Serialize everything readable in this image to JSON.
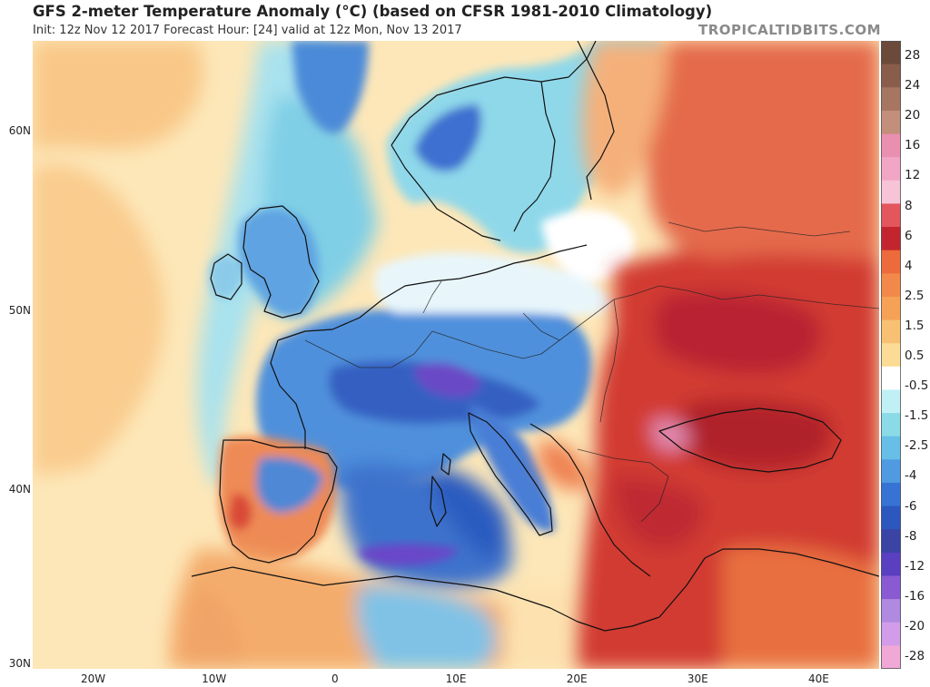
{
  "header": {
    "title": "GFS 2-meter Temperature Anomaly (°C) (based on CFSR 1981-2010 Climatology)",
    "subtitle": "Init: 12z Nov 12 2017   Forecast Hour: [24]   valid at 12z Mon, Nov 13 2017",
    "brand": "TROPICALTIDBITS.COM"
  },
  "map": {
    "lat_ticks": [
      {
        "label": "60N",
        "lat": 60
      },
      {
        "label": "50N",
        "lat": 50
      },
      {
        "label": "40N",
        "lat": 40
      },
      {
        "label": "30N",
        "lat": 30
      }
    ],
    "lon_ticks": [
      {
        "label": "20W",
        "lon": -20
      },
      {
        "label": "10W",
        "lon": -10
      },
      {
        "label": "0",
        "lon": 0
      },
      {
        "label": "10E",
        "lon": 10
      },
      {
        "label": "20E",
        "lon": 20
      },
      {
        "label": "30E",
        "lon": 30
      },
      {
        "label": "40E",
        "lon": 40
      }
    ],
    "extent": {
      "lon_min": -25,
      "lon_max": 45,
      "lat_min": 30,
      "lat_max": 65
    },
    "colors": {
      "ocean_base": "#fde7b8",
      "cold_light": "#a6e3ef",
      "cold_mid": "#5aa6e6",
      "cold_deep": "#2f68c8",
      "cold_extreme": "#7a4fd0",
      "warm_light": "#f8c57f",
      "warm_mid": "#ec7a44",
      "warm_deep": "#c9302c",
      "warm_extreme": "#a3182b",
      "neutral": "#ffffff",
      "border": "#111111"
    }
  },
  "legend": {
    "labels": [
      "28",
      "24",
      "20",
      "16",
      "12",
      "8",
      "6",
      "4",
      "2.5",
      "1.5",
      "0.5",
      "-0.5",
      "-1.5",
      "-2.5",
      "-4",
      "-6",
      "-8",
      "-12",
      "-16",
      "-20",
      "-28"
    ],
    "colors": [
      "#6b4a3a",
      "#8a5d4b",
      "#a67661",
      "#c28f7a",
      "#e98fb0",
      "#f2a6c5",
      "#f7c3d6",
      "#e2565c",
      "#c2252e",
      "#ec6a3b",
      "#f2884a",
      "#f5a257",
      "#f8c072",
      "#fbdb95",
      "#ffffff",
      "#c0f0f5",
      "#8adbe6",
      "#67bfe8",
      "#4f9ae0",
      "#3673d4",
      "#2c57be",
      "#3a44a5",
      "#5a3fc0",
      "#8a5ad2",
      "#b08ae0",
      "#d29ce8",
      "#f0a8d6"
    ]
  }
}
